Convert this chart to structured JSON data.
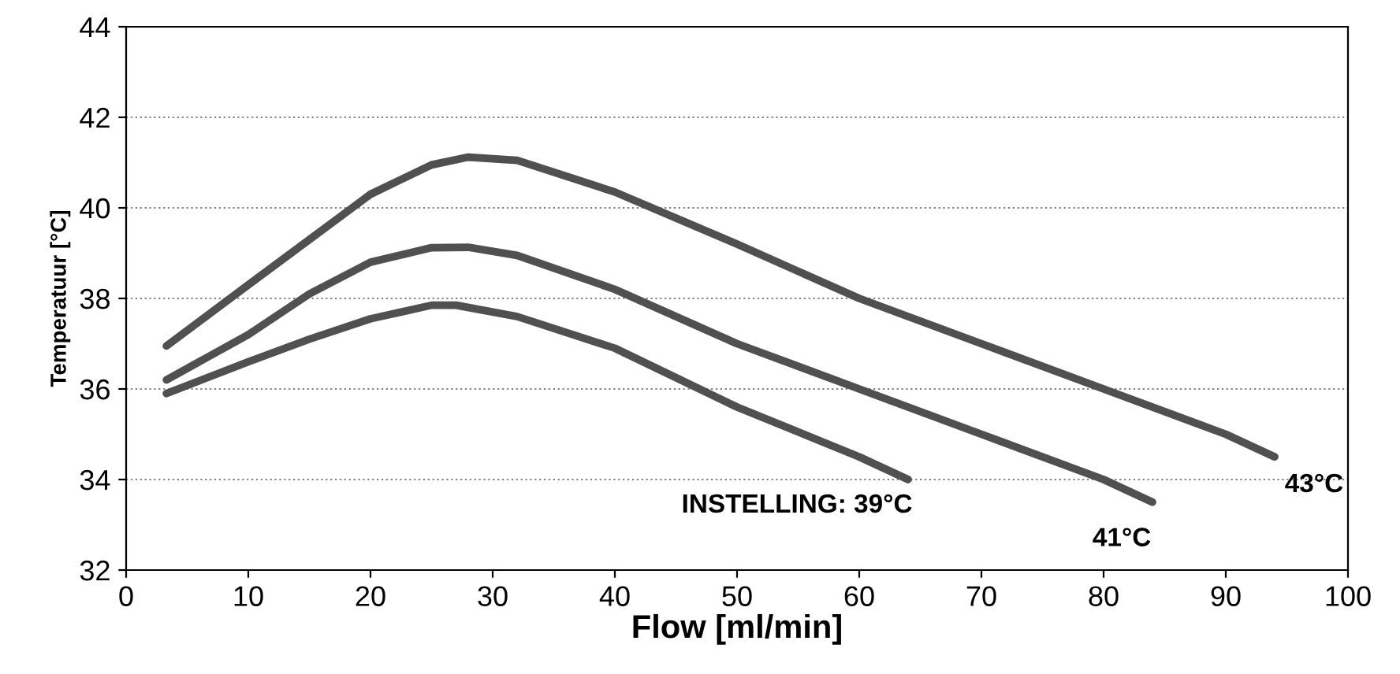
{
  "chart_data": {
    "type": "line",
    "xlabel": "Flow [ml/min]",
    "ylabel": "Temperatuur [°C]",
    "xlim": [
      0,
      100
    ],
    "xticks": [
      0,
      10,
      20,
      30,
      40,
      50,
      60,
      70,
      80,
      90,
      100
    ],
    "ylim": [
      32,
      44
    ],
    "yticks": [
      32,
      34,
      36,
      38,
      40,
      42,
      44
    ],
    "grid": "y",
    "legend": false,
    "marker": "none",
    "line_style": "solid",
    "series": [
      {
        "color": "#505050",
        "x": [
          3.3,
          10,
          15,
          20,
          25,
          28,
          32,
          40,
          50,
          60,
          70,
          80,
          90,
          94
        ],
        "values": [
          36.95,
          38.3,
          39.3,
          40.3,
          40.95,
          41.12,
          41.05,
          40.35,
          39.2,
          38.0,
          37.0,
          36.0,
          35.0,
          34.5
        ]
      },
      {
        "color": "#505050",
        "x": [
          3.3,
          10,
          15,
          20,
          25,
          28,
          32,
          40,
          50,
          60,
          70,
          80,
          84
        ],
        "values": [
          36.2,
          37.2,
          38.1,
          38.8,
          39.12,
          39.13,
          38.95,
          38.2,
          37.0,
          36.0,
          35.0,
          34.0,
          33.5
        ]
      },
      {
        "color": "#505050",
        "x": [
          3.3,
          10,
          15,
          20,
          25,
          27,
          32,
          40,
          50,
          60,
          64
        ],
        "values": [
          35.9,
          36.6,
          37.1,
          37.55,
          37.85,
          37.85,
          37.6,
          36.9,
          35.6,
          34.5,
          34.0
        ]
      }
    ],
    "annotations": [
      "INSTELLING: 39°C",
      "41°C",
      "43°C"
    ]
  }
}
